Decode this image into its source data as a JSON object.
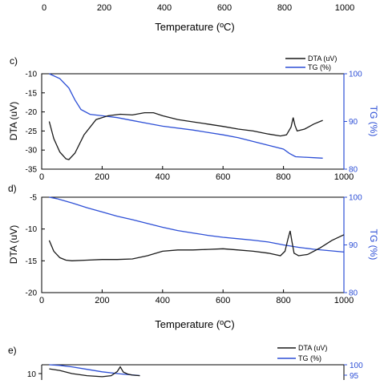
{
  "colors": {
    "dta": "#1a1a1a",
    "tg": "#2d4fd6",
    "axis": "#000000"
  },
  "top_fragment": {
    "tick_labels": [
      "0",
      "200",
      "400",
      "600",
      "800",
      "1000"
    ],
    "xlabel": "Temperature (ºC)"
  },
  "chart_data": [
    {
      "panel": "c)",
      "type": "line",
      "xlabel": "",
      "ylabel_left": "DTA (uV)",
      "ylabel_right": "TG (%)",
      "xlim": [
        0,
        1000
      ],
      "ylim_left": [
        -35,
        -10
      ],
      "ylim_right": [
        80,
        100
      ],
      "xticks": [
        "0",
        "200",
        "400",
        "600",
        "800",
        "1000"
      ],
      "yticks_left": [
        "-10",
        "-15",
        "-20",
        "-25",
        "-30",
        "-35"
      ],
      "yticks_right": [
        "100",
        "90",
        "80"
      ],
      "legend": {
        "position": "top-right",
        "entries": [
          "DTA (uV)",
          "TG (%)"
        ]
      },
      "series": [
        {
          "name": "DTA (uV)",
          "axis": "left",
          "x": [
            25,
            40,
            60,
            80,
            90,
            110,
            140,
            180,
            220,
            260,
            300,
            340,
            370,
            400,
            450,
            500,
            550,
            600,
            650,
            700,
            750,
            790,
            810,
            825,
            832,
            838,
            845,
            870,
            900,
            930
          ],
          "y": [
            -22.5,
            -27,
            -30.5,
            -32.3,
            -32.5,
            -30.8,
            -26,
            -22,
            -21,
            -20.6,
            -20.8,
            -20.2,
            -20.2,
            -21,
            -22,
            -22.6,
            -23.2,
            -23.8,
            -24.5,
            -25,
            -25.8,
            -26.3,
            -26,
            -24,
            -21.5,
            -23.5,
            -25,
            -24.5,
            -23.2,
            -22.2
          ]
        },
        {
          "name": "TG (%)",
          "axis": "right",
          "x": [
            25,
            60,
            90,
            110,
            130,
            160,
            200,
            250,
            300,
            350,
            400,
            500,
            600,
            650,
            700,
            750,
            800,
            820,
            840,
            870,
            900,
            930
          ],
          "y": [
            100,
            99,
            97,
            94.5,
            92.5,
            91.5,
            91.2,
            90.8,
            90.2,
            89.6,
            89,
            88.2,
            87.2,
            86.6,
            85.8,
            85,
            84.2,
            83.3,
            82.6,
            82.5,
            82.4,
            82.3
          ]
        }
      ]
    },
    {
      "panel": "d)",
      "type": "line",
      "xlabel": "Temperature (ºC)",
      "ylabel_left": "DTA (uV)",
      "ylabel_right": "TG (%)",
      "xlim": [
        0,
        1000
      ],
      "ylim_left": [
        -20,
        -5
      ],
      "ylim_right": [
        80,
        100
      ],
      "xticks": [
        "0",
        "200",
        "400",
        "600",
        "800",
        "1000"
      ],
      "yticks_left": [
        "-5",
        "-10",
        "-15",
        "-20"
      ],
      "yticks_right": [
        "100",
        "90",
        "80"
      ],
      "series": [
        {
          "name": "DTA (uV)",
          "axis": "left",
          "x": [
            25,
            40,
            60,
            80,
            100,
            150,
            200,
            250,
            300,
            350,
            400,
            450,
            500,
            550,
            600,
            650,
            700,
            750,
            790,
            805,
            815,
            822,
            828,
            835,
            850,
            880,
            920,
            960,
            1000
          ],
          "y": [
            -11.8,
            -13.5,
            -14.5,
            -14.9,
            -15,
            -14.9,
            -14.8,
            -14.8,
            -14.7,
            -14.2,
            -13.5,
            -13.3,
            -13.3,
            -13.2,
            -13.1,
            -13.3,
            -13.5,
            -13.8,
            -14.2,
            -13.5,
            -11.5,
            -10.3,
            -12,
            -13.8,
            -14.2,
            -14,
            -13,
            -11.8,
            -10.9
          ]
        },
        {
          "name": "TG (%)",
          "axis": "right",
          "x": [
            25,
            50,
            100,
            150,
            200,
            250,
            300,
            350,
            400,
            450,
            500,
            550,
            600,
            650,
            700,
            750,
            800,
            850,
            900,
            950,
            1000
          ],
          "y": [
            100,
            99.7,
            98.8,
            97.8,
            96.9,
            96,
            95.3,
            94.5,
            93.7,
            93,
            92.5,
            92,
            91.6,
            91.3,
            91,
            90.6,
            90,
            89.5,
            89.1,
            88.8,
            88.5
          ]
        }
      ]
    },
    {
      "panel": "e)",
      "type": "line",
      "ylabel_right": "",
      "xlim": [
        0,
        1000
      ],
      "yticks_left": [
        "10"
      ],
      "yticks_right": [
        "100",
        "95"
      ],
      "legend": {
        "position": "top-right",
        "entries": [
          "DTA (uV)",
          "TG (%)"
        ]
      },
      "series": [
        {
          "name": "DTA (uV)",
          "axis": "left",
          "x": [
            25,
            60,
            100,
            150,
            200,
            230,
            250,
            260,
            270,
            285,
            300,
            325
          ],
          "y": [
            10.9,
            10.6,
            10,
            9.6,
            9.4,
            9.6,
            10.4,
            11.3,
            10.3,
            9.9,
            9.7,
            9.6
          ]
        },
        {
          "name": "TG (%)",
          "axis": "right",
          "x": [
            25,
            60,
            100,
            150,
            200,
            260,
            300,
            325
          ],
          "y": [
            100,
            99.7,
            99,
            97.8,
            96.6,
            95.6,
            95.1,
            94.8
          ]
        }
      ]
    }
  ]
}
